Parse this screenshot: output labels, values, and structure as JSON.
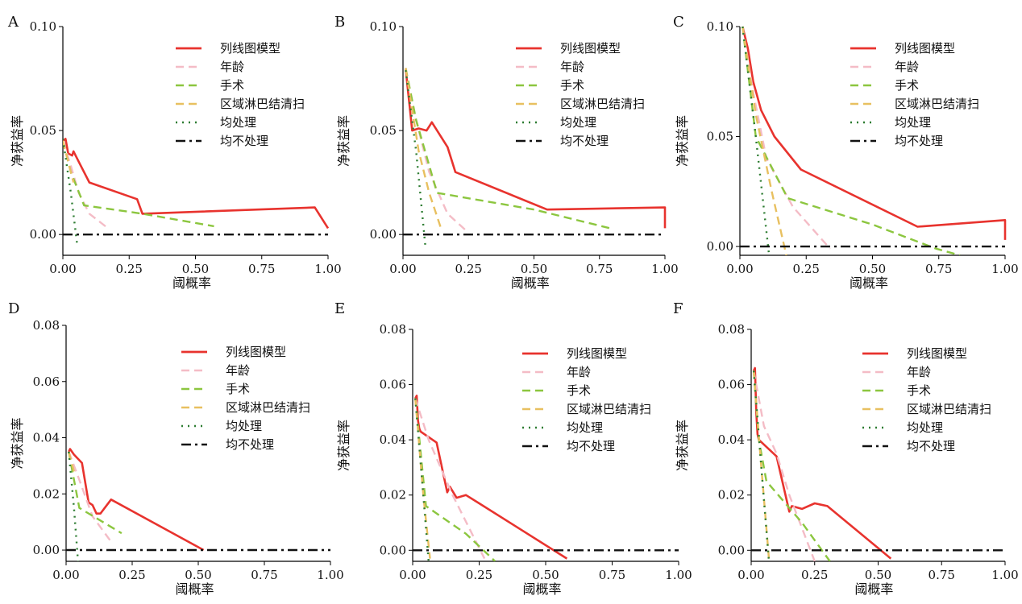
{
  "figure": {
    "background": "#ffffff",
    "axis_color": "#000000"
  },
  "legend_labels": [
    "列线图模型",
    "年龄",
    "手术",
    "区域淋巴结清扫",
    "均处理",
    "均不处理"
  ],
  "chart_data": [
    {
      "panel": "A",
      "type": "line",
      "xlabel": "阈概率",
      "ylabel": "净获益率",
      "xlim": [
        0,
        1
      ],
      "ylim": [
        -0.01,
        0.1
      ],
      "xticks": [
        0,
        0.25,
        0.5,
        0.75,
        1
      ],
      "xtick_labels": [
        "0.00",
        "0.25",
        "0.50",
        "0.75",
        "1.00"
      ],
      "yticks": [
        0,
        0.05,
        0.1
      ],
      "ytick_labels": [
        "0.00",
        "0.05",
        "0.10"
      ],
      "legend_position": "top-right",
      "series": [
        {
          "name": "列线图模型",
          "color": "#e8332e",
          "dash": "solid",
          "x": [
            0,
            0.01,
            0.02,
            0.035,
            0.04,
            0.06,
            0.1,
            0.28,
            0.3,
            0.95,
            1.0
          ],
          "y": [
            0.045,
            0.046,
            0.039,
            0.038,
            0.04,
            0.035,
            0.025,
            0.017,
            0.01,
            0.013,
            0.003
          ]
        },
        {
          "name": "年龄",
          "color": "#f4bcc6",
          "dash": "dashed",
          "x": [
            0,
            0.03,
            0.06,
            0.1,
            0.17
          ],
          "y": [
            0.045,
            0.033,
            0.02,
            0.01,
            0.003
          ]
        },
        {
          "name": "手术",
          "color": "#8cc63f",
          "dash": "dashed",
          "x": [
            0,
            0.03,
            0.08,
            0.3,
            0.57
          ],
          "y": [
            0.045,
            0.03,
            0.014,
            0.01,
            0.004
          ]
        },
        {
          "name": "区域淋巴结清扫",
          "color": "#e8c060",
          "dash": "dashed",
          "x": [
            0,
            0.02,
            0.04
          ],
          "y": [
            0.045,
            0.035,
            0.025
          ]
        },
        {
          "name": "均处理",
          "color": "#2e7d32",
          "dash": "dotted",
          "x": [
            0,
            0.03,
            0.055
          ],
          "y": [
            0.046,
            0.02,
            -0.006
          ]
        },
        {
          "name": "均不处理",
          "color": "#111111",
          "dash": "dashdot",
          "x": [
            0,
            1
          ],
          "y": [
            0,
            0
          ]
        }
      ]
    },
    {
      "panel": "B",
      "type": "line",
      "xlabel": "阈概率",
      "ylabel": "净获益率",
      "xlim": [
        0,
        1
      ],
      "ylim": [
        -0.01,
        0.1
      ],
      "xticks": [
        0,
        0.25,
        0.5,
        0.75,
        1
      ],
      "xtick_labels": [
        "0.00",
        "0.25",
        "0.50",
        "0.75",
        "1.00"
      ],
      "yticks": [
        0,
        0.05,
        0.1
      ],
      "ytick_labels": [
        "0.00",
        "0.05",
        "0.10"
      ],
      "legend_position": "top-right",
      "series": [
        {
          "name": "列线图模型",
          "color": "#e8332e",
          "dash": "solid",
          "x": [
            0.01,
            0.02,
            0.035,
            0.06,
            0.09,
            0.11,
            0.17,
            0.2,
            0.55,
            1.0,
            1.0
          ],
          "y": [
            0.08,
            0.068,
            0.05,
            0.051,
            0.05,
            0.054,
            0.042,
            0.03,
            0.012,
            0.013,
            0.003
          ]
        },
        {
          "name": "年龄",
          "color": "#f4bcc6",
          "dash": "dashed",
          "x": [
            0.01,
            0.05,
            0.1,
            0.17,
            0.24
          ],
          "y": [
            0.08,
            0.055,
            0.03,
            0.01,
            0.002
          ]
        },
        {
          "name": "手术",
          "color": "#8cc63f",
          "dash": "dashed",
          "x": [
            0.01,
            0.05,
            0.13,
            0.5,
            0.79
          ],
          "y": [
            0.08,
            0.055,
            0.02,
            0.012,
            0.003
          ]
        },
        {
          "name": "区域淋巴结清扫",
          "color": "#e8c060",
          "dash": "dashed",
          "x": [
            0.01,
            0.06,
            0.1,
            0.145
          ],
          "y": [
            0.08,
            0.04,
            0.02,
            0.003
          ]
        },
        {
          "name": "均处理",
          "color": "#2e7d32",
          "dash": "dotted",
          "x": [
            0.01,
            0.05,
            0.085
          ],
          "y": [
            0.079,
            0.04,
            -0.005
          ]
        },
        {
          "name": "均不处理",
          "color": "#111111",
          "dash": "dashdot",
          "x": [
            0,
            1
          ],
          "y": [
            0,
            0
          ]
        }
      ]
    },
    {
      "panel": "C",
      "type": "line",
      "xlabel": "阈概率",
      "ylabel": "净获益率",
      "xlim": [
        0,
        1
      ],
      "ylim": [
        -0.004,
        0.1
      ],
      "xticks": [
        0,
        0.25,
        0.5,
        0.75,
        1
      ],
      "xtick_labels": [
        "0.00",
        "0.25",
        "0.50",
        "0.75",
        "1.00"
      ],
      "yticks": [
        0,
        0.05,
        0.1
      ],
      "ytick_labels": [
        "0.00",
        "0.05",
        "0.10"
      ],
      "legend_position": "top-right",
      "series": [
        {
          "name": "列线图模型",
          "color": "#e8332e",
          "dash": "solid",
          "x": [
            0.01,
            0.03,
            0.05,
            0.08,
            0.13,
            0.23,
            0.67,
            1.0,
            1.0
          ],
          "y": [
            0.1,
            0.09,
            0.075,
            0.062,
            0.05,
            0.035,
            0.009,
            0.012,
            0.003
          ]
        },
        {
          "name": "年龄",
          "color": "#f4bcc6",
          "dash": "dashed",
          "x": [
            0.01,
            0.05,
            0.1,
            0.2,
            0.34
          ],
          "y": [
            0.1,
            0.07,
            0.04,
            0.018,
            -0.001
          ]
        },
        {
          "name": "手术",
          "color": "#8cc63f",
          "dash": "dashed",
          "x": [
            0.01,
            0.06,
            0.18,
            0.5,
            0.74,
            0.83
          ],
          "y": [
            0.1,
            0.05,
            0.022,
            0.01,
            -0.001,
            -0.004
          ]
        },
        {
          "name": "区域淋巴结清扫",
          "color": "#e8c060",
          "dash": "dashed",
          "x": [
            0.01,
            0.06,
            0.12,
            0.175
          ],
          "y": [
            0.1,
            0.06,
            0.025,
            -0.004
          ]
        },
        {
          "name": "均处理",
          "color": "#2e7d32",
          "dash": "dotted",
          "x": [
            0.01,
            0.06,
            0.11
          ],
          "y": [
            0.1,
            0.05,
            -0.004
          ]
        },
        {
          "name": "均不处理",
          "color": "#111111",
          "dash": "dashdot",
          "x": [
            0,
            1
          ],
          "y": [
            0,
            0
          ]
        }
      ]
    },
    {
      "panel": "D",
      "type": "line",
      "xlabel": "阈概率",
      "ylabel": "净获益率",
      "xlim": [
        0,
        1
      ],
      "ylim": [
        -0.004,
        0.08
      ],
      "xticks": [
        0,
        0.25,
        0.5,
        0.75,
        1
      ],
      "xtick_labels": [
        "0.00",
        "0.25",
        "0.50",
        "0.75",
        "1.00"
      ],
      "yticks": [
        0,
        0.02,
        0.04,
        0.06,
        0.08
      ],
      "ytick_labels": [
        "0.00",
        "0.02",
        "0.04",
        "0.06",
        "0.08"
      ],
      "legend_position": "top-right",
      "series": [
        {
          "name": "列线图模型",
          "color": "#e8332e",
          "dash": "solid",
          "x": [
            0.01,
            0.015,
            0.03,
            0.06,
            0.085,
            0.1,
            0.115,
            0.13,
            0.17,
            0.52
          ],
          "y": [
            0.035,
            0.036,
            0.034,
            0.031,
            0.017,
            0.016,
            0.013,
            0.013,
            0.018,
            0.0
          ]
        },
        {
          "name": "年龄",
          "color": "#f4bcc6",
          "dash": "dashed",
          "x": [
            0.01,
            0.05,
            0.1,
            0.17
          ],
          "y": [
            0.035,
            0.025,
            0.012,
            0.003
          ]
        },
        {
          "name": "手术",
          "color": "#8cc63f",
          "dash": "dashed",
          "x": [
            0.01,
            0.03,
            0.05,
            0.21
          ],
          "y": [
            0.035,
            0.025,
            0.015,
            0.006
          ]
        },
        {
          "name": "区域淋巴结清扫",
          "color": "#e8c060",
          "dash": "dashed",
          "x": [
            0.01,
            0.03
          ],
          "y": [
            0.035,
            0.028
          ]
        },
        {
          "name": "均处理",
          "color": "#2e7d32",
          "dash": "dotted",
          "x": [
            0.01,
            0.03,
            0.045
          ],
          "y": [
            0.035,
            0.015,
            -0.004
          ]
        },
        {
          "name": "均不处理",
          "color": "#111111",
          "dash": "dashdot",
          "x": [
            0,
            1
          ],
          "y": [
            0,
            0
          ]
        }
      ]
    },
    {
      "panel": "E",
      "type": "line",
      "xlabel": "阈概率",
      "ylabel": "净获益率",
      "xlim": [
        0,
        1
      ],
      "ylim": [
        -0.004,
        0.08
      ],
      "xticks": [
        0,
        0.25,
        0.5,
        0.75,
        1
      ],
      "xtick_labels": [
        "0.00",
        "0.25",
        "0.50",
        "0.75",
        "1.00"
      ],
      "yticks": [
        0,
        0.02,
        0.04,
        0.06,
        0.08
      ],
      "ytick_labels": [
        "0.00",
        "0.02",
        "0.04",
        "0.06",
        "0.08"
      ],
      "legend_position": "top-right",
      "series": [
        {
          "name": "列线图模型",
          "color": "#e8332e",
          "dash": "solid",
          "x": [
            0.01,
            0.015,
            0.02,
            0.025,
            0.03,
            0.09,
            0.13,
            0.14,
            0.165,
            0.2,
            0.25,
            0.58
          ],
          "y": [
            0.055,
            0.056,
            0.047,
            0.044,
            0.043,
            0.039,
            0.021,
            0.023,
            0.019,
            0.02,
            0.017,
            -0.003
          ]
        },
        {
          "name": "年龄",
          "color": "#f4bcc6",
          "dash": "dashed",
          "x": [
            0.01,
            0.06,
            0.15,
            0.27
          ],
          "y": [
            0.055,
            0.04,
            0.02,
            -0.003
          ]
        },
        {
          "name": "手术",
          "color": "#8cc63f",
          "dash": "dashed",
          "x": [
            0.01,
            0.05,
            0.2,
            0.31
          ],
          "y": [
            0.055,
            0.016,
            0.006,
            -0.004
          ]
        },
        {
          "name": "区域淋巴结清扫",
          "color": "#e8c060",
          "dash": "dashed",
          "x": [
            0.01,
            0.04,
            0.065
          ],
          "y": [
            0.055,
            0.02,
            -0.003
          ]
        },
        {
          "name": "均处理",
          "color": "#2e7d32",
          "dash": "dotted",
          "x": [
            0.01,
            0.04,
            0.06
          ],
          "y": [
            0.055,
            0.02,
            -0.004
          ]
        },
        {
          "name": "均不处理",
          "color": "#111111",
          "dash": "dashdot",
          "x": [
            0,
            1
          ],
          "y": [
            0,
            0
          ]
        }
      ]
    },
    {
      "panel": "F",
      "type": "line",
      "xlabel": "阈概率",
      "ylabel": "净获益率",
      "xlim": [
        0,
        1
      ],
      "ylim": [
        -0.004,
        0.08
      ],
      "xticks": [
        0,
        0.25,
        0.5,
        0.75,
        1
      ],
      "xtick_labels": [
        "0.00",
        "0.25",
        "0.50",
        "0.75",
        "1.00"
      ],
      "yticks": [
        0,
        0.02,
        0.04,
        0.06,
        0.08
      ],
      "ytick_labels": [
        "0.00",
        "0.02",
        "0.04",
        "0.06",
        "0.08"
      ],
      "legend_position": "top-right",
      "series": [
        {
          "name": "列线图模型",
          "color": "#e8332e",
          "dash": "solid",
          "x": [
            0.01,
            0.015,
            0.02,
            0.025,
            0.03,
            0.1,
            0.15,
            0.16,
            0.2,
            0.25,
            0.3,
            0.55
          ],
          "y": [
            0.065,
            0.066,
            0.05,
            0.042,
            0.04,
            0.034,
            0.014,
            0.016,
            0.015,
            0.017,
            0.016,
            -0.003
          ]
        },
        {
          "name": "年龄",
          "color": "#f4bcc6",
          "dash": "dashed",
          "x": [
            0.01,
            0.05,
            0.1,
            0.15,
            0.25
          ],
          "y": [
            0.065,
            0.045,
            0.035,
            0.02,
            -0.004
          ]
        },
        {
          "name": "手术",
          "color": "#8cc63f",
          "dash": "dashed",
          "x": [
            0.01,
            0.03,
            0.06,
            0.2,
            0.31
          ],
          "y": [
            0.065,
            0.04,
            0.025,
            0.01,
            -0.004
          ]
        },
        {
          "name": "区域淋巴结清扫",
          "color": "#e8c060",
          "dash": "dashed",
          "x": [
            0.01,
            0.04,
            0.07
          ],
          "y": [
            0.065,
            0.03,
            -0.003
          ]
        },
        {
          "name": "均处理",
          "color": "#2e7d32",
          "dash": "dotted",
          "x": [
            0.01,
            0.04,
            0.07
          ],
          "y": [
            0.065,
            0.03,
            -0.004
          ]
        },
        {
          "name": "均不处理",
          "color": "#111111",
          "dash": "dashdot",
          "x": [
            0,
            1
          ],
          "y": [
            0,
            0
          ]
        }
      ]
    }
  ]
}
